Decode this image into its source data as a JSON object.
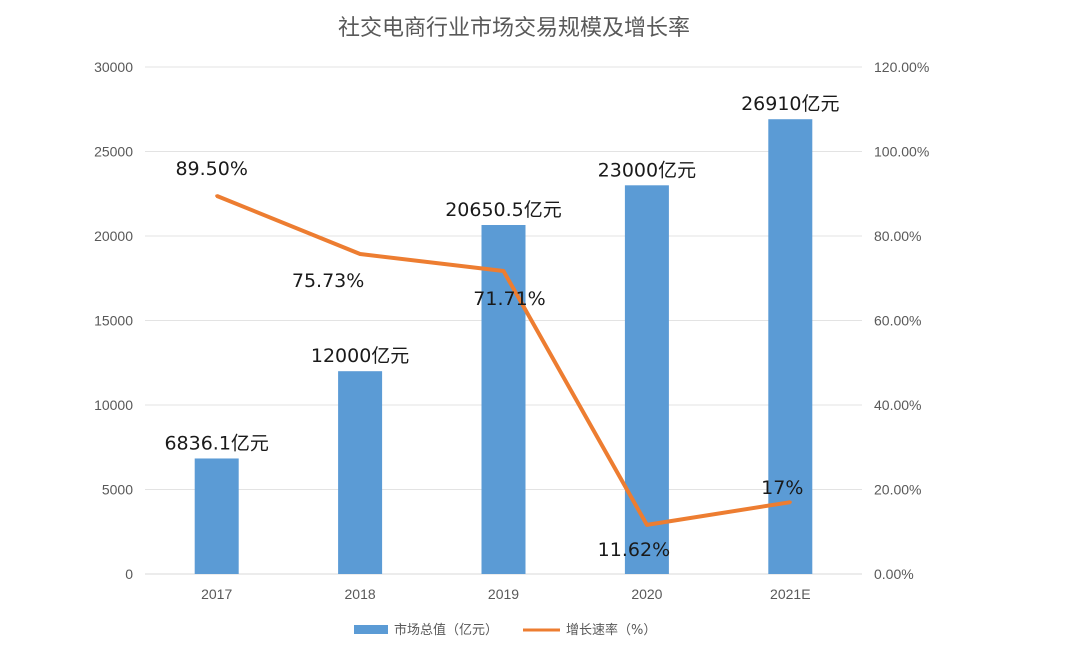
{
  "chart_data": {
    "type": "bar",
    "title": "社交电商行业市场交易规模及增长率",
    "categories": [
      "2017",
      "2018",
      "2019",
      "2020",
      "2021E"
    ],
    "series": [
      {
        "name": "市场总值（亿元）",
        "type": "bar",
        "axis": "left",
        "color": "#5b9bd5",
        "values": [
          6836.1,
          12000,
          20650.5,
          23000,
          26910
        ],
        "labels": [
          "6836.1亿元",
          "12000亿元",
          "20650.5亿元",
          "23000亿元",
          "26910亿元"
        ]
      },
      {
        "name": "增长速率（%）",
        "type": "line",
        "axis": "right",
        "color": "#ed7d31",
        "values": [
          89.5,
          75.73,
          71.71,
          11.62,
          17
        ],
        "labels": [
          "89.50%",
          "75.73%",
          "71.71%",
          "11.62%",
          "17%"
        ]
      }
    ],
    "y_left": {
      "range": [
        0,
        30000
      ],
      "ticks": [
        "0",
        "5000",
        "10000",
        "15000",
        "20000",
        "25000",
        "30000"
      ]
    },
    "y_right": {
      "range": [
        0,
        120
      ],
      "ticks": [
        "0.00%",
        "20.00%",
        "40.00%",
        "60.00%",
        "80.00%",
        "100.00%",
        "120.00%"
      ]
    },
    "grid": true,
    "legend_position": "bottom"
  }
}
